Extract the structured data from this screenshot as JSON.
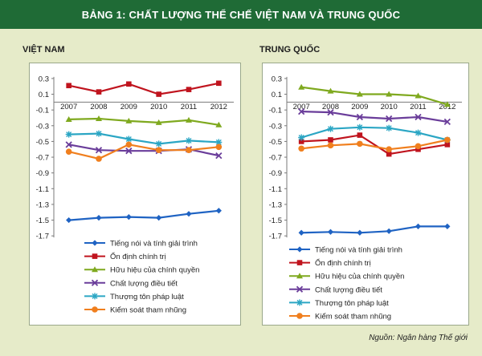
{
  "title": "BẢNG 1: CHẤT LƯỢNG THỂ CHẾ VIỆT NAM VÀ TRUNG QUỐC",
  "source": "Nguồn: Ngân hàng Thế giới",
  "chart_data": [
    {
      "type": "line",
      "title": "VIỆT NAM",
      "x": [
        "2007",
        "2008",
        "2009",
        "2010",
        "2011",
        "2012"
      ],
      "yticks": [
        0.3,
        0.1,
        -0.1,
        -0.3,
        -0.5,
        -0.7,
        -0.9,
        -1.1,
        -1.3,
        -1.5,
        -1.7
      ],
      "ytick_labels": [
        "0.3",
        "0.1",
        "-0.1",
        "-0.3",
        "-0.5",
        "-0.7",
        "-0.9",
        "-1.1",
        "-1.3",
        "-1.5",
        "-1.7"
      ],
      "ylim": [
        -1.8,
        0.35
      ],
      "grid": false,
      "legend": "bottom",
      "series": [
        {
          "name": "Tiếng nói  và tính giải trình",
          "color": "#1f63c3",
          "marker": "diamond",
          "values": [
            -1.5,
            -1.47,
            -1.46,
            -1.47,
            -1.42,
            -1.38
          ]
        },
        {
          "name": "Ổn định chính trị",
          "color": "#c0141e",
          "marker": "square",
          "values": [
            0.21,
            0.13,
            0.23,
            0.1,
            0.16,
            0.24
          ]
        },
        {
          "name": "Hữu hiệu của chính quyền",
          "color": "#7fa91f",
          "marker": "triangle",
          "values": [
            -0.22,
            -0.21,
            -0.24,
            -0.26,
            -0.23,
            -0.29
          ]
        },
        {
          "name": "Chất lượng điều tiết",
          "color": "#6a3d9a",
          "marker": "x",
          "values": [
            -0.54,
            -0.61,
            -0.62,
            -0.62,
            -0.6,
            -0.68
          ]
        },
        {
          "name": "Thượng tôn pháp luật",
          "color": "#2ba6c4",
          "marker": "star",
          "values": [
            -0.41,
            -0.4,
            -0.47,
            -0.53,
            -0.49,
            -0.51
          ]
        },
        {
          "name": "Kiểm soát tham nhũng",
          "color": "#f07f1e",
          "marker": "circle",
          "values": [
            -0.63,
            -0.72,
            -0.54,
            -0.61,
            -0.61,
            -0.57
          ]
        }
      ]
    },
    {
      "type": "line",
      "title": "TRUNG QUỐC",
      "x": [
        "2007",
        "2008",
        "2009",
        "2010",
        "2011",
        "2012"
      ],
      "yticks": [
        0.3,
        0.1,
        -0.1,
        -0.3,
        -0.5,
        -0.7,
        -0.9,
        -1.1,
        -1.3,
        -1.5,
        -1.7
      ],
      "ytick_labels": [
        "0.3",
        "0.1",
        "-0.1",
        "-0.3",
        "-0.5",
        "-0.7",
        "-0.9",
        "-1.1",
        "-1.3",
        "-1.5",
        "-1.7"
      ],
      "ylim": [
        -1.8,
        0.35
      ],
      "grid": false,
      "legend": "bottom",
      "series": [
        {
          "name": "Tiếng nói  và tính giải trình",
          "color": "#1f63c3",
          "marker": "diamond",
          "values": [
            -1.66,
            -1.65,
            -1.66,
            -1.64,
            -1.58,
            -1.58
          ]
        },
        {
          "name": "Ổn định chính trị",
          "color": "#c0141e",
          "marker": "square",
          "values": [
            -0.5,
            -0.48,
            -0.42,
            -0.66,
            -0.6,
            -0.54
          ]
        },
        {
          "name": "Hữu hiệu của chính quyền",
          "color": "#7fa91f",
          "marker": "triangle",
          "values": [
            0.19,
            0.14,
            0.1,
            0.1,
            0.08,
            -0.03
          ]
        },
        {
          "name": "Chất lượng điều tiết",
          "color": "#6a3d9a",
          "marker": "x",
          "values": [
            -0.12,
            -0.13,
            -0.19,
            -0.21,
            -0.19,
            -0.25
          ]
        },
        {
          "name": "Thượng tôn pháp luật",
          "color": "#2ba6c4",
          "marker": "star",
          "values": [
            -0.45,
            -0.34,
            -0.32,
            -0.33,
            -0.39,
            -0.48
          ]
        },
        {
          "name": "Kiểm soát tham nhũng",
          "color": "#f07f1e",
          "marker": "circle",
          "values": [
            -0.59,
            -0.55,
            -0.53,
            -0.6,
            -0.56,
            -0.48
          ]
        }
      ]
    }
  ]
}
